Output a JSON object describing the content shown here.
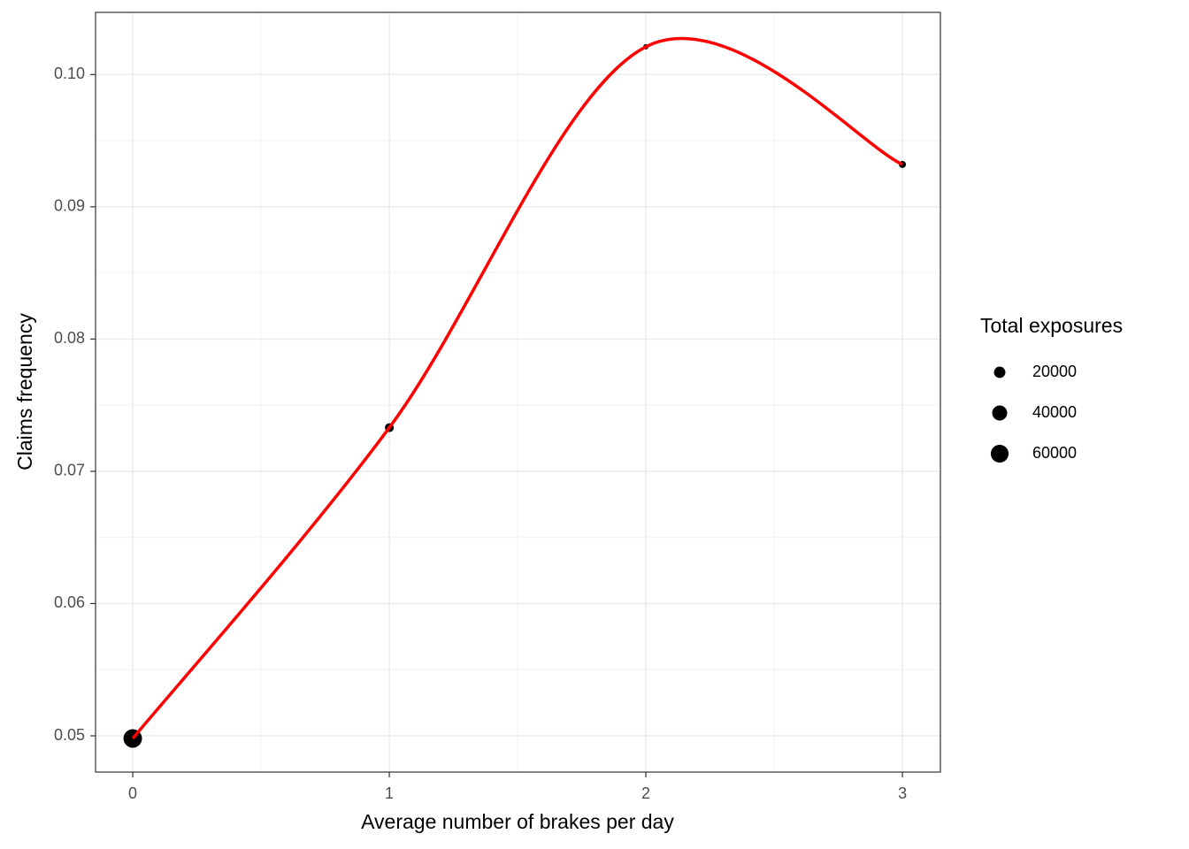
{
  "chart_data": {
    "type": "scatter",
    "x_label": "Average number of brakes per day",
    "y_label": "Claims frequency",
    "x": [
      0,
      1,
      2,
      3
    ],
    "values": [
      0.0498,
      0.0733,
      0.1021,
      0.0932
    ],
    "sizes": [
      66000,
      10000,
      1800,
      5000
    ],
    "point_color": "#000000",
    "smooth": true,
    "smooth_color": "#ff0000",
    "xlim": [
      -0.145,
      3.148
    ],
    "ylim": [
      0.04726,
      0.1047
    ],
    "xticks": [
      0,
      1,
      2,
      3
    ],
    "yticks": [
      {
        "value": 0.05,
        "label": "0.05"
      },
      {
        "value": 0.06,
        "label": "0.06"
      },
      {
        "value": 0.07,
        "label": "0.07"
      },
      {
        "value": 0.08,
        "label": "0.08"
      },
      {
        "value": 0.09,
        "label": "0.09"
      },
      {
        "value": 0.1,
        "label": "0.10"
      }
    ],
    "xminor": [
      0.5,
      1.5,
      2.5
    ],
    "yminor": [
      0.055,
      0.065,
      0.075,
      0.085,
      0.095
    ],
    "grid": true,
    "legend": {
      "title": "Total exposures",
      "position": "right",
      "sizes": [
        20000,
        40000,
        60000
      ]
    }
  }
}
